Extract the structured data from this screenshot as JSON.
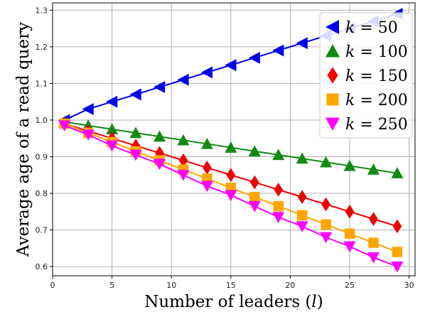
{
  "chart_data": {
    "type": "line",
    "xlabel": "Number of leaders (",
    "xlabel_var": "l",
    "xlabel_end": ")",
    "ylabel": "Average age of a read query",
    "xlim": [
      0,
      30.5
    ],
    "ylim": [
      0.575,
      1.32
    ],
    "xticks": [
      0,
      5,
      10,
      15,
      20,
      25,
      30
    ],
    "yticks": [
      0.6,
      0.7,
      0.8,
      0.9,
      1.0,
      1.1,
      1.2,
      1.3
    ],
    "xtick_labels": [
      "0",
      "5",
      "10",
      "15",
      "20",
      "25",
      "30"
    ],
    "ytick_labels": [
      "0.6",
      "0.7",
      "0.8",
      "0.9",
      "1.0",
      "1.1",
      "1.2",
      "1.3"
    ],
    "grid": true,
    "legend_position": "top-right",
    "x": [
      1,
      3,
      5,
      7,
      9,
      11,
      13,
      15,
      17,
      19,
      21,
      23,
      25,
      27,
      29
    ],
    "series": [
      {
        "name": "k = 50",
        "legend_var": "k",
        "legend_value": "50",
        "marker": "triangle-left",
        "color": "#0000ee",
        "values": [
          1.0,
          1.03,
          1.05,
          1.07,
          1.09,
          1.11,
          1.13,
          1.15,
          1.17,
          1.19,
          1.21,
          1.23,
          1.25,
          1.27,
          1.29
        ]
      },
      {
        "name": "k = 100",
        "legend_var": "k",
        "legend_value": "100",
        "marker": "triangle-up",
        "color": "#128a12",
        "values": [
          0.995,
          0.985,
          0.975,
          0.965,
          0.955,
          0.945,
          0.935,
          0.925,
          0.915,
          0.905,
          0.895,
          0.885,
          0.875,
          0.865,
          0.855
        ]
      },
      {
        "name": "k = 150",
        "legend_var": "k",
        "legend_value": "150",
        "marker": "diamond",
        "color": "#ee0000",
        "values": [
          0.99,
          0.97,
          0.95,
          0.93,
          0.91,
          0.89,
          0.87,
          0.85,
          0.83,
          0.81,
          0.79,
          0.77,
          0.75,
          0.73,
          0.71
        ]
      },
      {
        "name": "k = 200",
        "legend_var": "k",
        "legend_value": "200",
        "marker": "square",
        "color": "#ffa500",
        "values": [
          0.99,
          0.965,
          0.94,
          0.915,
          0.89,
          0.865,
          0.84,
          0.815,
          0.79,
          0.765,
          0.74,
          0.715,
          0.69,
          0.665,
          0.64
        ]
      },
      {
        "name": "k = 250",
        "legend_var": "k",
        "legend_value": "250",
        "marker": "triangle-down",
        "color": "#ff00ff",
        "values": [
          0.985,
          0.96,
          0.93,
          0.905,
          0.88,
          0.85,
          0.82,
          0.795,
          0.765,
          0.735,
          0.71,
          0.68,
          0.655,
          0.625,
          0.6
        ]
      }
    ]
  }
}
